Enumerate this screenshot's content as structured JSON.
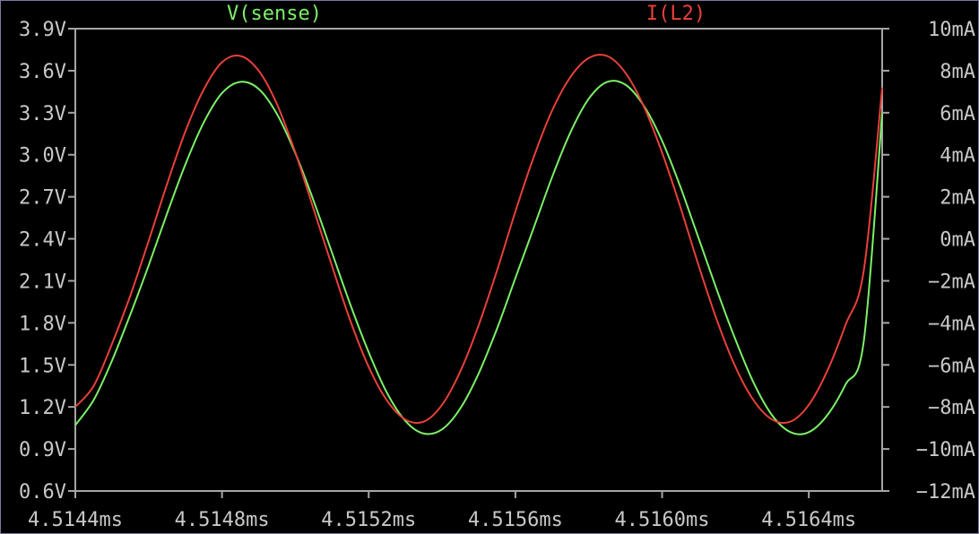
{
  "chart_data": {
    "type": "line",
    "title": "",
    "x": {
      "unit": "ms",
      "range": [
        4.5144,
        4.5166
      ],
      "ticks": [
        "4.5144ms",
        "4.5148ms",
        "4.5152ms",
        "4.5156ms",
        "4.5160ms",
        "4.5164ms"
      ],
      "tick_values": [
        4.5144,
        4.5148,
        4.5152,
        4.5156,
        4.516,
        4.5164
      ]
    },
    "y_left": {
      "unit": "V",
      "range": [
        0.6,
        3.9
      ],
      "ticks": [
        "3.9V",
        "3.6V",
        "3.3V",
        "3.0V",
        "2.7V",
        "2.4V",
        "2.1V",
        "1.8V",
        "1.5V",
        "1.2V",
        "0.9V",
        "0.6V"
      ],
      "tick_values": [
        3.9,
        3.6,
        3.3,
        3.0,
        2.7,
        2.4,
        2.1,
        1.8,
        1.5,
        1.2,
        0.9,
        0.6
      ]
    },
    "y_right": {
      "unit": "mA",
      "range": [
        -12,
        10
      ],
      "ticks": [
        "10mA",
        "8mA",
        "6mA",
        "4mA",
        "2mA",
        "0mA",
        "−2mA",
        "−4mA",
        "−6mA",
        "−8mA",
        "−10mA",
        "−12mA"
      ],
      "tick_values": [
        10,
        8,
        6,
        4,
        2,
        0,
        -2,
        -4,
        -6,
        -8,
        -10,
        -12
      ]
    },
    "grid": false,
    "legend": "top",
    "series": [
      {
        "name": "V(sense)",
        "axis": "left",
        "color": "#7cf068",
        "x": [
          4.5144,
          4.51445,
          4.5145,
          4.51455,
          4.5146,
          4.51465,
          4.5147,
          4.51475,
          4.5148,
          4.51485,
          4.5149,
          4.51495,
          4.515,
          4.51505,
          4.5151,
          4.51515,
          4.5152,
          4.51525,
          4.5153,
          4.51535,
          4.5154,
          4.51545,
          4.5155,
          4.51555,
          4.5156,
          4.51565,
          4.5157,
          4.51575,
          4.5158,
          4.51585,
          4.5159,
          4.51595,
          4.516,
          4.51605,
          4.5161,
          4.51615,
          4.5162,
          4.51625,
          4.5163,
          4.51635,
          4.5164,
          4.51645,
          4.5165,
          4.51655,
          4.5166
        ],
        "y": [
          1.07,
          1.25,
          1.53,
          1.86,
          2.21,
          2.58,
          2.93,
          3.23,
          3.44,
          3.52,
          3.47,
          3.29,
          3.01,
          2.67,
          2.3,
          1.93,
          1.59,
          1.3,
          1.1,
          1.01,
          1.04,
          1.19,
          1.44,
          1.76,
          2.12,
          2.48,
          2.84,
          3.16,
          3.4,
          3.52,
          3.5,
          3.35,
          3.1,
          2.77,
          2.4,
          2.03,
          1.68,
          1.37,
          1.14,
          1.02,
          1.02,
          1.14,
          1.36,
          1.67,
          3.3
        ]
      },
      {
        "name": "I(L2)",
        "axis": "right",
        "color": "#e8403a",
        "x": [
          4.5144,
          4.51445,
          4.5145,
          4.51455,
          4.5146,
          4.51465,
          4.5147,
          4.51475,
          4.5148,
          4.51485,
          4.5149,
          4.51495,
          4.515,
          4.51505,
          4.5151,
          4.51515,
          4.5152,
          4.51525,
          4.5153,
          4.51535,
          4.5154,
          4.51545,
          4.5155,
          4.51555,
          4.5156,
          4.51565,
          4.5157,
          4.51575,
          4.5158,
          4.51585,
          4.5159,
          4.51595,
          4.516,
          4.51605,
          4.5161,
          4.51615,
          4.5162,
          4.51625,
          4.5163,
          4.51635,
          4.5164,
          4.51645,
          4.5165,
          4.51655,
          4.5166
        ],
        "y": [
          -8.0,
          -7.0,
          -5.0,
          -2.7,
          -0.1,
          2.6,
          5.1,
          7.1,
          8.4,
          8.7,
          8.0,
          6.4,
          4.1,
          1.4,
          -1.3,
          -3.9,
          -6.1,
          -7.7,
          -8.6,
          -8.7,
          -7.9,
          -6.3,
          -4.1,
          -1.5,
          1.3,
          3.9,
          6.1,
          7.7,
          8.6,
          8.7,
          7.9,
          6.3,
          4.1,
          1.5,
          -1.3,
          -3.9,
          -6.1,
          -7.7,
          -8.6,
          -8.7,
          -7.9,
          -6.3,
          -4.1,
          -1.5,
          7.2
        ]
      }
    ]
  }
}
